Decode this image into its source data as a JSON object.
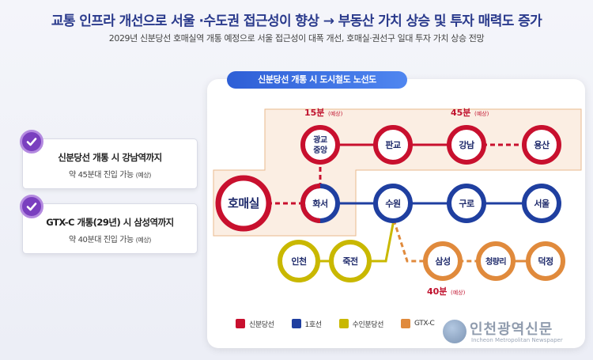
{
  "header": {
    "headline": "교통 인프라 개선으로 서울 ·수도권 접근성이 향상 → 부동산 가치 상승 및 투자 매력도 증가",
    "subline": "2029년 신분당선 호매실역 개통 예정으로 서울 접근성이 대폭 개선, 호매실·권선구 일대 투자 가치 상승 전망"
  },
  "cards": [
    {
      "title": "신분당선 개통 시 강남역까지",
      "detail": "약 45분대 진입 가능",
      "note": "(예상)"
    },
    {
      "title": "GTX-C 개통(29년) 시 삼성역까지",
      "detail": "약 40분대 진입 가능",
      "note": "(예상)"
    }
  ],
  "panel": {
    "title": "신분당선 개통 시 도시철도 노선도"
  },
  "stations": {
    "homaesil": "호매실",
    "hwaseo": "화서",
    "gwanggyo": "광교 중앙",
    "pangyo": "판교",
    "gangnam": "강남",
    "yongsan": "용산",
    "suwon": "수원",
    "guro": "구로",
    "seoul": "서울",
    "incheon": "인천",
    "jukjeon": "죽전",
    "samseong": "삼성",
    "cheongnyangni": "청량리",
    "deokjeong": "덕정"
  },
  "times": {
    "t15": "15분",
    "t15_note": "(예상)",
    "t45": "45분",
    "t45_note": "(예상)",
    "t40": "40분",
    "t40_note": "(예상)"
  },
  "legend": [
    {
      "label": "신분당선",
      "color": "#c8102e"
    },
    {
      "label": "1호선",
      "color": "#1f3fa0"
    },
    {
      "label": "수인분당선",
      "color": "#c9b800"
    },
    {
      "label": "GTX-C",
      "color": "#e08a3c"
    }
  ],
  "watermark": {
    "name": "인천광역신문",
    "en": "Incheon Metropolitan Newspaper"
  },
  "colors": {
    "shinbundang": "#c8102e",
    "line1": "#1f3fa0",
    "suin": "#c9b800",
    "gtxc": "#e08a3c",
    "accent": "#2a3a8c",
    "check": "#7a3fbf"
  }
}
